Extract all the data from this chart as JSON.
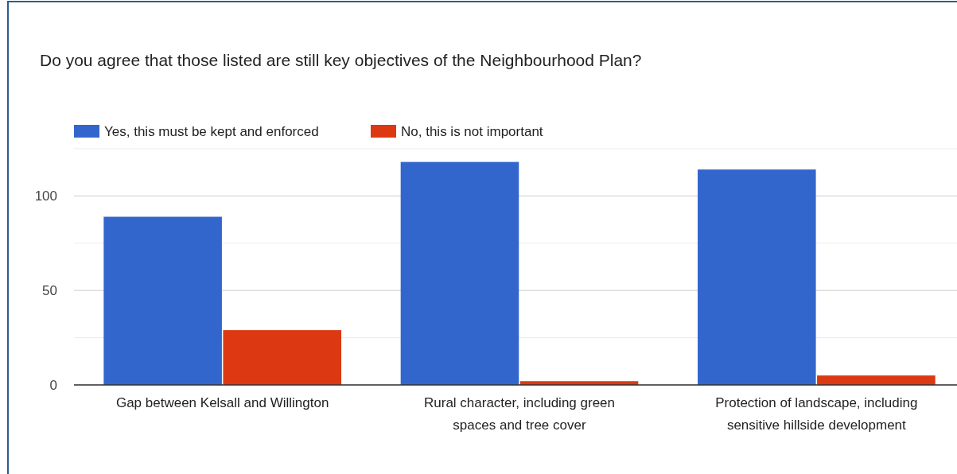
{
  "chart_data": {
    "type": "bar",
    "title": "Do you agree that those listed are still key objectives of the Neighbourhood Plan?",
    "categories": [
      "Gap between Kelsall and Willington",
      "Rural character, including green spaces and tree cover",
      "Protection of landscape, including sensitive hillside development"
    ],
    "series": [
      {
        "name": "Yes, this must be kept and enforced",
        "color": "#3366cc",
        "values": [
          89,
          118,
          114
        ]
      },
      {
        "name": "No, this is not important",
        "color": "#dc3912",
        "values": [
          29,
          2,
          5
        ]
      }
    ],
    "ylim": [
      0,
      125
    ],
    "yticks": [
      0,
      {
        "value": 25,
        "label": null
      },
      50,
      {
        "value": 75,
        "label": null
      },
      100,
      {
        "value": 125,
        "label": null
      }
    ],
    "grid": "y",
    "legend": "top left"
  }
}
